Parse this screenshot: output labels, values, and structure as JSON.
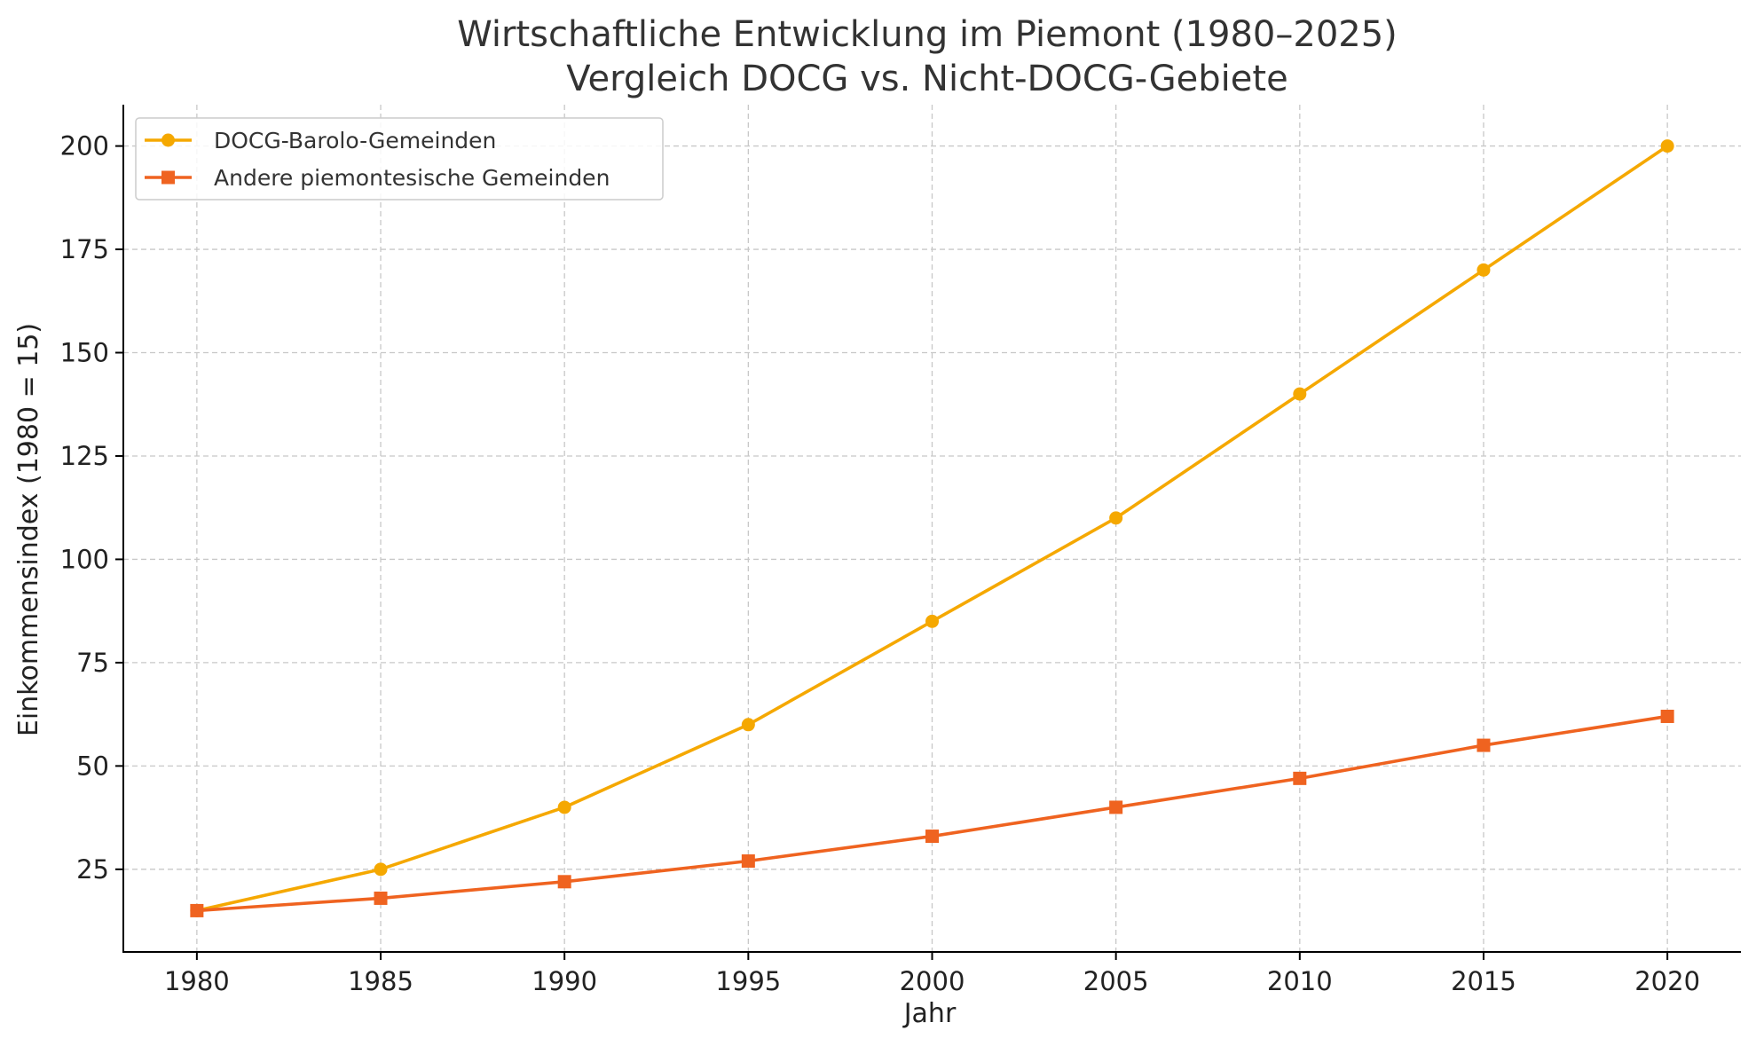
{
  "chart_data": {
    "type": "line",
    "title": "Wirtschaftliche Entwicklung im Piemont (1980–2025)",
    "subtitle": "Vergleich DOCG vs. Nicht-DOCG-Gebiete",
    "xlabel": "Jahr",
    "ylabel": "Einkommensindex (1980 = 15)",
    "x": [
      1980,
      1985,
      1990,
      1995,
      2000,
      2005,
      2010,
      2015,
      2020
    ],
    "xlim": [
      1978,
      2022
    ],
    "ylim": [
      5,
      210
    ],
    "yticks": [
      25,
      50,
      75,
      100,
      125,
      150,
      175,
      200
    ],
    "grid": true,
    "legend_position": "top-left",
    "series": [
      {
        "name": "DOCG-Barolo-Gemeinden",
        "color": "#f5a800",
        "marker": "circle",
        "values": [
          15,
          25,
          40,
          60,
          85,
          110,
          140,
          170,
          200
        ]
      },
      {
        "name": "Andere piemontesische Gemeinden",
        "color": "#ef6320",
        "marker": "square",
        "values": [
          15,
          18,
          22,
          27,
          33,
          40,
          47,
          55,
          62
        ]
      }
    ]
  }
}
